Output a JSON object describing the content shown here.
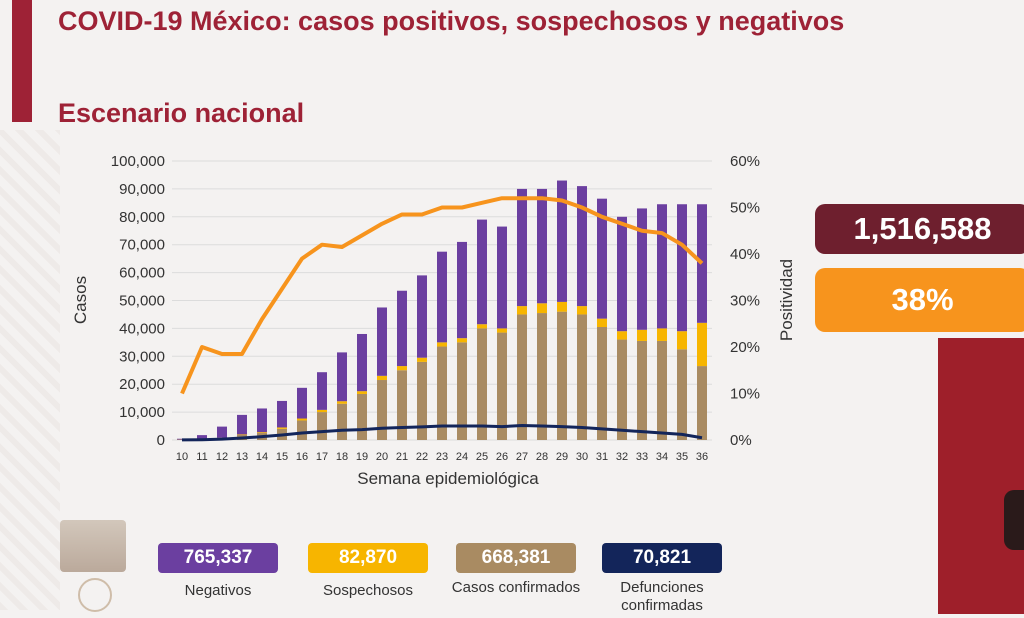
{
  "header": {
    "title": "COVID-19 México: casos positivos, sospechosos y negativos",
    "subtitle": "Escenario nacional"
  },
  "kpis": {
    "total": "1,516,588",
    "positivity": "38%"
  },
  "badges": [
    {
      "value": "765,337",
      "label": "Negativos"
    },
    {
      "value": "82,870",
      "label": "Sospechosos"
    },
    {
      "value": "668,381",
      "label": "Casos confirmados"
    },
    {
      "value": "70,821",
      "label": "Defunciones confirmadas"
    }
  ],
  "colors": {
    "brand": "#9e2236",
    "negativos": "#6b3fa0",
    "sospechosos": "#f7b500",
    "confirmados": "#a98b62",
    "defunciones": "#13255a",
    "positividad": "#f7941d"
  },
  "chart_data": {
    "type": "bar",
    "stacked": true,
    "xlabel": "Semana epidemiológica",
    "ylabel": "Casos",
    "y2label": "Positividad",
    "ylim": [
      0,
      100000
    ],
    "y2lim": [
      0,
      60
    ],
    "yticks": [
      "0",
      "10,000",
      "20,000",
      "30,000",
      "40,000",
      "50,000",
      "60,000",
      "70,000",
      "80,000",
      "90,000",
      "100,000"
    ],
    "y2ticks": [
      "0%",
      "10%",
      "20%",
      "30%",
      "40%",
      "50%",
      "60%"
    ],
    "categories": [
      "10",
      "11",
      "12",
      "13",
      "14",
      "15",
      "16",
      "17",
      "18",
      "19",
      "20",
      "21",
      "22",
      "23",
      "24",
      "25",
      "26",
      "27",
      "28",
      "29",
      "30",
      "31",
      "32",
      "33",
      "34",
      "35",
      "36"
    ],
    "series": [
      {
        "name": "Casos confirmados",
        "values": [
          100,
          300,
          700,
          1800,
          2500,
          4000,
          7000,
          10000,
          13000,
          16500,
          21500,
          25000,
          28000,
          33500,
          35000,
          40000,
          38500,
          45000,
          45500,
          46000,
          45000,
          40500,
          36000,
          35500,
          35500,
          32500,
          26500
        ]
      },
      {
        "name": "Sospechosos",
        "values": [
          50,
          50,
          100,
          200,
          300,
          500,
          700,
          800,
          900,
          1000,
          1500,
          1500,
          1500,
          1500,
          1500,
          1500,
          1500,
          3000,
          3500,
          3500,
          3000,
          3000,
          3000,
          4000,
          4500,
          6500,
          15500
        ]
      },
      {
        "name": "Negativos",
        "values": [
          300,
          1400,
          4000,
          7000,
          8500,
          9500,
          11000,
          13500,
          17500,
          20500,
          24500,
          27000,
          29500,
          32500,
          34500,
          37500,
          36500,
          42000,
          41000,
          43500,
          43000,
          43000,
          41000,
          43500,
          44500,
          45500,
          42500
        ]
      },
      {
        "name": "Positividad",
        "axis": "right",
        "values": [
          10,
          20,
          18.5,
          18.5,
          26,
          32.5,
          39,
          42,
          41.5,
          44,
          46.5,
          48.5,
          48.5,
          50,
          50,
          51,
          52,
          52,
          52,
          51.5,
          50,
          48,
          46.5,
          45,
          44.5,
          42,
          38
        ]
      },
      {
        "name": "Defunciones",
        "values": [
          50,
          100,
          300,
          700,
          1200,
          1800,
          2500,
          3000,
          3500,
          3700,
          4200,
          4500,
          4700,
          5000,
          5000,
          5000,
          4800,
          5200,
          5000,
          4800,
          4500,
          4000,
          3500,
          3000,
          2500,
          2000,
          800
        ]
      }
    ]
  }
}
